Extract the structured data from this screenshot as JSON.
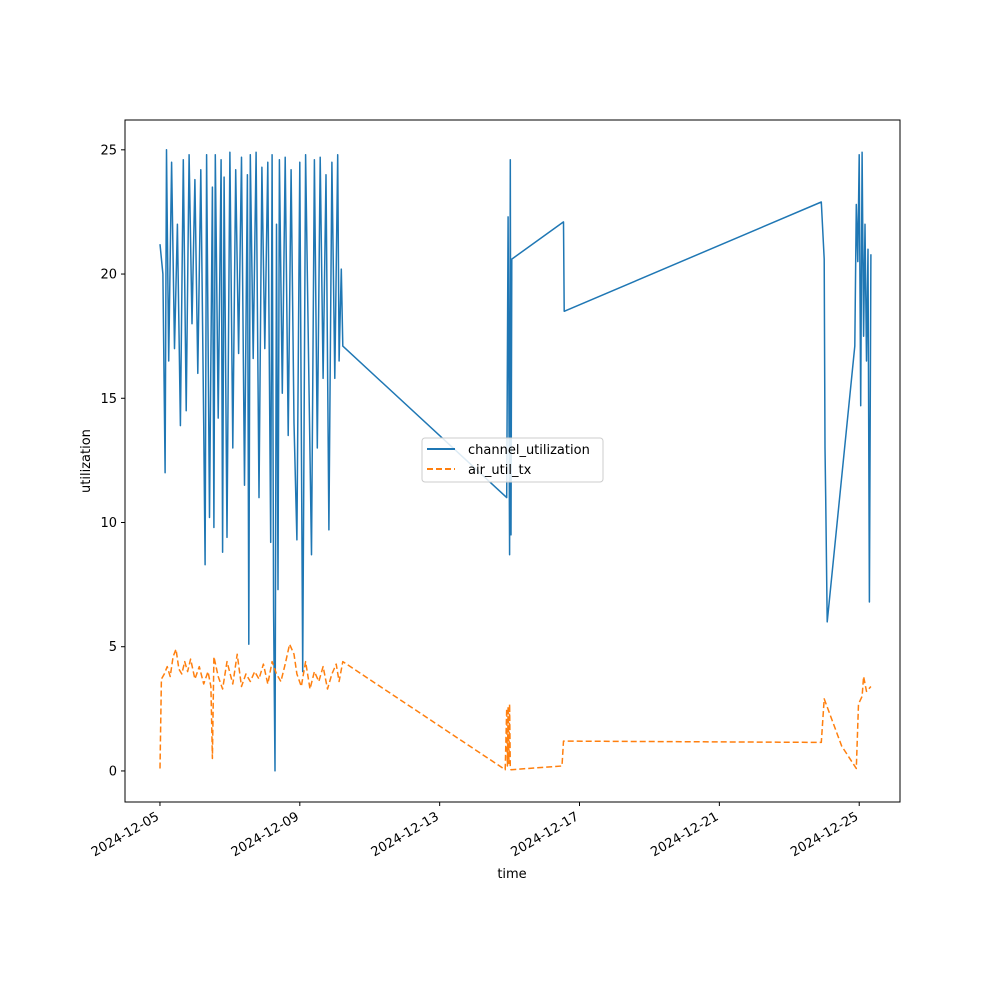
{
  "chart_data": {
    "type": "line",
    "title": "",
    "xlabel": "time",
    "ylabel": "utilization",
    "xlim": [
      "2024-12-04T00:00",
      "2024-12-26T04:00"
    ],
    "ylim": [
      -1.25,
      26.2
    ],
    "xticks": [
      "2024-12-05",
      "2024-12-09",
      "2024-12-13",
      "2024-12-17",
      "2024-12-21",
      "2024-12-25"
    ],
    "yticks": [
      0,
      5,
      10,
      15,
      20,
      25
    ],
    "grid": false,
    "legend": {
      "location": "center",
      "entries": [
        "channel_utilization",
        "air_util_tx"
      ]
    },
    "series": [
      {
        "name": "channel_utilization",
        "color": "#1f77b4",
        "style": "solid",
        "points": [
          [
            "2024-12-05T00:00",
            21.2
          ],
          [
            "2024-12-05T02:00",
            20.0
          ],
          [
            "2024-12-05T03:30",
            12.0
          ],
          [
            "2024-12-05T04:30",
            25.0
          ],
          [
            "2024-12-05T06:00",
            16.5
          ],
          [
            "2024-12-05T08:00",
            24.5
          ],
          [
            "2024-12-05T10:00",
            17.0
          ],
          [
            "2024-12-05T12:00",
            22.0
          ],
          [
            "2024-12-05T14:00",
            13.9
          ],
          [
            "2024-12-05T16:00",
            24.6
          ],
          [
            "2024-12-05T18:00",
            14.5
          ],
          [
            "2024-12-05T20:00",
            24.8
          ],
          [
            "2024-12-05T22:00",
            18.0
          ],
          [
            "2024-12-06T00:00",
            23.8
          ],
          [
            "2024-12-06T02:00",
            16.0
          ],
          [
            "2024-12-06T04:00",
            24.2
          ],
          [
            "2024-12-06T06:00",
            14.0
          ],
          [
            "2024-12-06T07:00",
            8.3
          ],
          [
            "2024-12-06T08:00",
            24.8
          ],
          [
            "2024-12-06T10:00",
            10.2
          ],
          [
            "2024-12-06T12:00",
            23.5
          ],
          [
            "2024-12-06T13:00",
            9.8
          ],
          [
            "2024-12-06T14:00",
            24.8
          ],
          [
            "2024-12-06T16:00",
            14.2
          ],
          [
            "2024-12-06T18:00",
            24.6
          ],
          [
            "2024-12-06T19:00",
            8.8
          ],
          [
            "2024-12-06T20:00",
            23.9
          ],
          [
            "2024-12-06T22:00",
            9.4
          ],
          [
            "2024-12-07T00:00",
            24.9
          ],
          [
            "2024-12-07T02:00",
            13.0
          ],
          [
            "2024-12-07T04:00",
            24.2
          ],
          [
            "2024-12-07T06:00",
            16.8
          ],
          [
            "2024-12-07T08:00",
            24.7
          ],
          [
            "2024-12-07T10:00",
            11.5
          ],
          [
            "2024-12-07T12:00",
            24.0
          ],
          [
            "2024-12-07T13:00",
            5.1
          ],
          [
            "2024-12-07T14:00",
            24.8
          ],
          [
            "2024-12-07T16:00",
            16.6
          ],
          [
            "2024-12-07T18:00",
            24.9
          ],
          [
            "2024-12-07T20:00",
            11.0
          ],
          [
            "2024-12-07T22:00",
            24.3
          ],
          [
            "2024-12-08T00:00",
            17.0
          ],
          [
            "2024-12-08T02:00",
            24.5
          ],
          [
            "2024-12-08T04:00",
            9.2
          ],
          [
            "2024-12-08T05:00",
            24.8
          ],
          [
            "2024-12-08T06:00",
            6.4
          ],
          [
            "2024-12-08T07:00",
            0.0
          ],
          [
            "2024-12-08T08:00",
            22.0
          ],
          [
            "2024-12-08T09:00",
            7.3
          ],
          [
            "2024-12-08T10:00",
            24.6
          ],
          [
            "2024-12-08T12:00",
            15.2
          ],
          [
            "2024-12-08T14:00",
            24.7
          ],
          [
            "2024-12-08T16:00",
            13.5
          ],
          [
            "2024-12-08T18:00",
            24.2
          ],
          [
            "2024-12-08T20:00",
            14.0
          ],
          [
            "2024-12-08T22:00",
            9.3
          ],
          [
            "2024-12-09T00:00",
            24.5
          ],
          [
            "2024-12-09T02:00",
            4.0
          ],
          [
            "2024-12-09T04:00",
            24.8
          ],
          [
            "2024-12-09T06:00",
            16.5
          ],
          [
            "2024-12-09T08:00",
            8.7
          ],
          [
            "2024-12-09T10:00",
            24.6
          ],
          [
            "2024-12-09T12:00",
            13.0
          ],
          [
            "2024-12-09T14:00",
            24.7
          ],
          [
            "2024-12-09T16:00",
            15.8
          ],
          [
            "2024-12-09T18:00",
            24.0
          ],
          [
            "2024-12-09T20:00",
            9.7
          ],
          [
            "2024-12-09T22:00",
            24.5
          ],
          [
            "2024-12-10T00:00",
            15.8
          ],
          [
            "2024-12-10T02:00",
            24.8
          ],
          [
            "2024-12-10T03:00",
            16.5
          ],
          [
            "2024-12-10T04:30",
            20.2
          ],
          [
            "2024-12-10T05:30",
            17.1
          ],
          [
            "2024-12-14T22:00",
            11.0
          ],
          [
            "2024-12-14T23:00",
            22.3
          ],
          [
            "2024-12-15T00:00",
            8.7
          ],
          [
            "2024-12-15T00:30",
            24.6
          ],
          [
            "2024-12-15T01:00",
            9.5
          ],
          [
            "2024-12-15T01:30",
            20.6
          ],
          [
            "2024-12-16T13:00",
            22.1
          ],
          [
            "2024-12-16T13:30",
            18.5
          ],
          [
            "2024-12-23T22:00",
            22.9
          ],
          [
            "2024-12-24T00:00",
            20.6
          ],
          [
            "2024-12-24T00:30",
            13.0
          ],
          [
            "2024-12-24T01:00",
            11.0
          ],
          [
            "2024-12-24T02:00",
            6.0
          ],
          [
            "2024-12-24T21:00",
            17.1
          ],
          [
            "2024-12-24T22:00",
            22.8
          ],
          [
            "2024-12-24T23:00",
            20.5
          ],
          [
            "2024-12-25T00:00",
            24.8
          ],
          [
            "2024-12-25T01:00",
            14.7
          ],
          [
            "2024-12-25T02:00",
            24.9
          ],
          [
            "2024-12-25T03:00",
            17.5
          ],
          [
            "2024-12-25T04:00",
            22.0
          ],
          [
            "2024-12-25T05:00",
            16.5
          ],
          [
            "2024-12-25T06:00",
            21.0
          ],
          [
            "2024-12-25T07:00",
            6.8
          ],
          [
            "2024-12-25T08:00",
            20.8
          ]
        ]
      },
      {
        "name": "air_util_tx",
        "color": "#ff7f0e",
        "style": "dashed",
        "points": [
          [
            "2024-12-05T00:00",
            0.1
          ],
          [
            "2024-12-05T01:00",
            3.7
          ],
          [
            "2024-12-05T03:00",
            3.9
          ],
          [
            "2024-12-05T05:00",
            4.2
          ],
          [
            "2024-12-05T07:00",
            3.8
          ],
          [
            "2024-12-05T09:00",
            4.6
          ],
          [
            "2024-12-05T11:00",
            4.9
          ],
          [
            "2024-12-05T13:00",
            4.1
          ],
          [
            "2024-12-05T15:00",
            3.9
          ],
          [
            "2024-12-05T17:00",
            4.4
          ],
          [
            "2024-12-05T19:00",
            4.0
          ],
          [
            "2024-12-05T21:00",
            4.5
          ],
          [
            "2024-12-06T00:00",
            3.7
          ],
          [
            "2024-12-06T03:00",
            4.2
          ],
          [
            "2024-12-06T06:00",
            3.5
          ],
          [
            "2024-12-06T09:00",
            4.0
          ],
          [
            "2024-12-06T11:00",
            3.4
          ],
          [
            "2024-12-06T12:00",
            0.5
          ],
          [
            "2024-12-06T13:00",
            4.6
          ],
          [
            "2024-12-06T16:00",
            3.8
          ],
          [
            "2024-12-06T19:00",
            3.3
          ],
          [
            "2024-12-06T22:00",
            4.4
          ],
          [
            "2024-12-07T02:00",
            3.5
          ],
          [
            "2024-12-07T05:00",
            4.7
          ],
          [
            "2024-12-07T08:00",
            3.4
          ],
          [
            "2024-12-07T11:00",
            3.9
          ],
          [
            "2024-12-07T14:00",
            3.6
          ],
          [
            "2024-12-07T17:00",
            4.0
          ],
          [
            "2024-12-07T20:00",
            3.7
          ],
          [
            "2024-12-07T23:00",
            4.3
          ],
          [
            "2024-12-08T02:00",
            3.5
          ],
          [
            "2024-12-08T05:00",
            4.4
          ],
          [
            "2024-12-08T08:00",
            3.9
          ],
          [
            "2024-12-08T11:00",
            3.6
          ],
          [
            "2024-12-08T14:00",
            4.3
          ],
          [
            "2024-12-08T17:00",
            5.1
          ],
          [
            "2024-12-08T20:00",
            4.7
          ],
          [
            "2024-12-08T22:00",
            3.9
          ],
          [
            "2024-12-09T01:00",
            3.4
          ],
          [
            "2024-12-09T04:00",
            4.4
          ],
          [
            "2024-12-09T07:00",
            3.3
          ],
          [
            "2024-12-09T10:00",
            4.0
          ],
          [
            "2024-12-09T13:00",
            3.6
          ],
          [
            "2024-12-09T16:00",
            4.2
          ],
          [
            "2024-12-09T19:00",
            3.3
          ],
          [
            "2024-12-09T22:00",
            3.9
          ],
          [
            "2024-12-10T01:00",
            4.3
          ],
          [
            "2024-12-10T03:00",
            3.6
          ],
          [
            "2024-12-10T05:30",
            4.4
          ],
          [
            "2024-12-14T21:00",
            0.05
          ],
          [
            "2024-12-14T22:00",
            2.5
          ],
          [
            "2024-12-14T22:30",
            0.2
          ],
          [
            "2024-12-14T23:00",
            2.6
          ],
          [
            "2024-12-14T23:30",
            0.3
          ],
          [
            "2024-12-15T00:00",
            2.7
          ],
          [
            "2024-12-15T00:30",
            0.1
          ],
          [
            "2024-12-15T01:00",
            0.05
          ],
          [
            "2024-12-16T12:00",
            0.2
          ],
          [
            "2024-12-16T13:00",
            1.2
          ],
          [
            "2024-12-23T22:00",
            1.15
          ],
          [
            "2024-12-24T00:00",
            2.9
          ],
          [
            "2024-12-24T12:00",
            1.0
          ],
          [
            "2024-12-24T22:00",
            0.1
          ],
          [
            "2024-12-24T23:30",
            2.7
          ],
          [
            "2024-12-25T02:00",
            3.0
          ],
          [
            "2024-12-25T03:00",
            3.8
          ],
          [
            "2024-12-25T05:00",
            3.2
          ],
          [
            "2024-12-25T08:00",
            3.4
          ]
        ]
      }
    ]
  }
}
